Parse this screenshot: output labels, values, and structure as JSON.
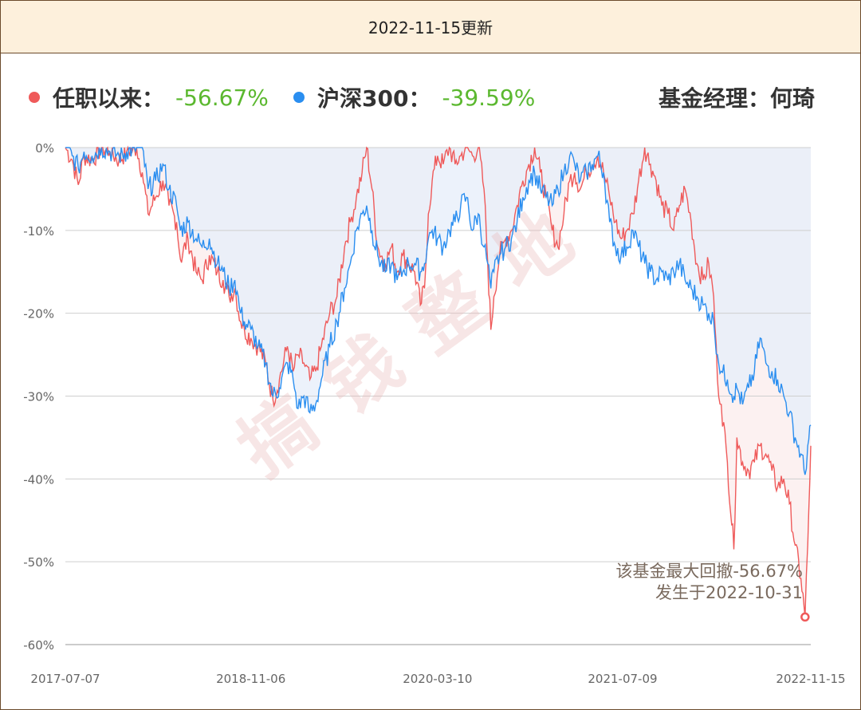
{
  "header": {
    "title": "2022-11-15更新"
  },
  "legend": {
    "fund_label": "任职以来：",
    "fund_value": "-56.67%",
    "fund_color": "#ef5a5a",
    "index_label": "沪深300：",
    "index_value": "-39.59%",
    "index_color": "#2a8ef0",
    "manager_text": "基金经理：何琦"
  },
  "watermark": "搞钱整地",
  "annotation": {
    "line1": "该基金最大回撤-56.67%",
    "line2": "发生于2022-10-31"
  },
  "chart_data": {
    "type": "line",
    "title": "",
    "xlabel": "",
    "ylabel": "",
    "x_ticks": [
      "2017-07-07",
      "2018-11-06",
      "2020-03-10",
      "2021-07-09",
      "2022-11-15"
    ],
    "ylim": [
      -60,
      0
    ],
    "y_ticks": [
      0,
      -10,
      -20,
      -30,
      -40,
      -50,
      -60
    ],
    "y_tick_labels": [
      "0%",
      "-10%",
      "-20%",
      "-30%",
      "-40%",
      "-50%",
      "-60%"
    ],
    "grid": true,
    "max_drawdown_point": {
      "date": "2022-10-31",
      "value": -56.67
    },
    "series": [
      {
        "name": "任职以来",
        "color": "#ef5a5a",
        "points": [
          [
            "2017-07-07",
            0
          ],
          [
            "2017-07-25",
            -1.5
          ],
          [
            "2017-08-10",
            -4.5
          ],
          [
            "2017-08-25",
            -1.0
          ],
          [
            "2017-09-15",
            -1.5
          ],
          [
            "2017-10-10",
            0
          ],
          [
            "2017-11-01",
            -0.5
          ],
          [
            "2017-11-25",
            -1.5
          ],
          [
            "2017-12-15",
            -0.5
          ],
          [
            "2018-01-10",
            0
          ],
          [
            "2018-01-25",
            -3
          ],
          [
            "2018-02-09",
            -8
          ],
          [
            "2018-03-01",
            -6
          ],
          [
            "2018-03-20",
            -4
          ],
          [
            "2018-04-05",
            -7
          ],
          [
            "2018-04-25",
            -9
          ],
          [
            "2018-05-05",
            -13.5
          ],
          [
            "2018-05-25",
            -11
          ],
          [
            "2018-06-15",
            -15
          ],
          [
            "2018-07-01",
            -16
          ],
          [
            "2018-07-20",
            -13
          ],
          [
            "2018-08-10",
            -15
          ],
          [
            "2018-08-25",
            -16
          ],
          [
            "2018-09-10",
            -18
          ],
          [
            "2018-09-25",
            -17
          ],
          [
            "2018-10-10",
            -21
          ],
          [
            "2018-10-20",
            -22
          ],
          [
            "2018-11-06",
            -23
          ],
          [
            "2018-11-25",
            -24
          ],
          [
            "2018-12-15",
            -26
          ],
          [
            "2019-01-03",
            -30.5
          ],
          [
            "2019-01-20",
            -28
          ],
          [
            "2019-02-10",
            -24
          ],
          [
            "2019-02-25",
            -27
          ],
          [
            "2019-03-10",
            -25
          ],
          [
            "2019-03-25",
            -26
          ],
          [
            "2019-04-10",
            -28
          ],
          [
            "2019-04-25",
            -27
          ],
          [
            "2019-05-10",
            -24
          ],
          [
            "2019-06-01",
            -20
          ],
          [
            "2019-06-20",
            -18
          ],
          [
            "2019-07-10",
            -12
          ],
          [
            "2019-07-25",
            -9
          ],
          [
            "2019-08-10",
            -6
          ],
          [
            "2019-08-25",
            -3
          ],
          [
            "2019-09-06",
            0
          ],
          [
            "2019-09-20",
            -5
          ],
          [
            "2019-10-05",
            -12
          ],
          [
            "2019-10-25",
            -14
          ],
          [
            "2019-11-10",
            -12
          ],
          [
            "2019-11-25",
            -15
          ],
          [
            "2019-12-10",
            -13
          ],
          [
            "2019-12-25",
            -14
          ],
          [
            "2020-01-10",
            -15
          ],
          [
            "2020-01-25",
            -19
          ],
          [
            "2020-02-05",
            -17
          ],
          [
            "2020-02-15",
            -8
          ],
          [
            "2020-02-25",
            -4
          ],
          [
            "2020-03-10",
            -1
          ],
          [
            "2020-03-25",
            -2
          ],
          [
            "2020-04-10",
            0
          ],
          [
            "2020-04-25",
            -2
          ],
          [
            "2020-05-10",
            -1
          ],
          [
            "2020-05-25",
            0
          ],
          [
            "2020-06-10",
            -1
          ],
          [
            "2020-06-25",
            0
          ],
          [
            "2020-07-10",
            -5
          ],
          [
            "2020-07-20",
            -14
          ],
          [
            "2020-07-28",
            -22
          ],
          [
            "2020-08-05",
            -18
          ],
          [
            "2020-08-20",
            -13
          ],
          [
            "2020-09-05",
            -11
          ],
          [
            "2020-09-20",
            -10
          ],
          [
            "2020-10-05",
            -7
          ],
          [
            "2020-10-20",
            -4
          ],
          [
            "2020-11-05",
            -2
          ],
          [
            "2020-11-20",
            0
          ],
          [
            "2020-12-05",
            -3
          ],
          [
            "2020-12-20",
            -6
          ],
          [
            "2021-01-05",
            -10
          ],
          [
            "2021-01-20",
            -12
          ],
          [
            "2021-02-05",
            -8
          ],
          [
            "2021-02-20",
            -4
          ],
          [
            "2021-03-05",
            -3
          ],
          [
            "2021-03-20",
            -5
          ],
          [
            "2021-04-05",
            -3
          ],
          [
            "2021-04-20",
            -2
          ],
          [
            "2021-05-05",
            -1
          ],
          [
            "2021-05-20",
            -3
          ],
          [
            "2021-06-05",
            -6
          ],
          [
            "2021-06-20",
            -9
          ],
          [
            "2021-07-05",
            -11
          ],
          [
            "2021-07-20",
            -10
          ],
          [
            "2021-08-05",
            -8
          ],
          [
            "2021-08-20",
            -4
          ],
          [
            "2021-09-05",
            0
          ],
          [
            "2021-09-20",
            -2
          ],
          [
            "2021-10-05",
            -4
          ],
          [
            "2021-10-20",
            -7
          ],
          [
            "2021-11-05",
            -8
          ],
          [
            "2021-11-20",
            -10
          ],
          [
            "2021-12-05",
            -7
          ],
          [
            "2021-12-20",
            -5
          ],
          [
            "2022-01-05",
            -9
          ],
          [
            "2022-01-20",
            -14
          ],
          [
            "2022-02-05",
            -16
          ],
          [
            "2022-02-20",
            -14
          ],
          [
            "2022-03-05",
            -18
          ],
          [
            "2022-03-15",
            -28
          ],
          [
            "2022-03-25",
            -31
          ],
          [
            "2022-04-10",
            -38
          ],
          [
            "2022-04-27",
            -48.5
          ],
          [
            "2022-05-05",
            -35
          ],
          [
            "2022-05-20",
            -38
          ],
          [
            "2022-06-05",
            -39
          ],
          [
            "2022-06-20",
            -38
          ],
          [
            "2022-07-05",
            -36
          ],
          [
            "2022-07-20",
            -37
          ],
          [
            "2022-08-05",
            -39
          ],
          [
            "2022-08-20",
            -41
          ],
          [
            "2022-09-05",
            -40
          ],
          [
            "2022-09-20",
            -43
          ],
          [
            "2022-10-05",
            -48
          ],
          [
            "2022-10-20",
            -52
          ],
          [
            "2022-10-31",
            -56.67
          ],
          [
            "2022-11-07",
            -48
          ],
          [
            "2022-11-15",
            -36
          ]
        ]
      },
      {
        "name": "沪深300",
        "color": "#2a8ef0",
        "points": [
          [
            "2017-07-07",
            0
          ],
          [
            "2017-07-25",
            -1
          ],
          [
            "2017-08-10",
            -2.5
          ],
          [
            "2017-08-25",
            -0.5
          ],
          [
            "2017-09-15",
            -1.0
          ],
          [
            "2017-10-10",
            0
          ],
          [
            "2017-11-01",
            -0.5
          ],
          [
            "2017-11-25",
            -1.0
          ],
          [
            "2017-12-15",
            -0.5
          ],
          [
            "2018-01-10",
            0
          ],
          [
            "2018-01-25",
            0
          ],
          [
            "2018-02-09",
            -5
          ],
          [
            "2018-03-01",
            -4
          ],
          [
            "2018-03-20",
            -2
          ],
          [
            "2018-04-05",
            -5
          ],
          [
            "2018-04-25",
            -7
          ],
          [
            "2018-05-05",
            -10
          ],
          [
            "2018-05-25",
            -9
          ],
          [
            "2018-06-15",
            -11
          ],
          [
            "2018-07-01",
            -12
          ],
          [
            "2018-07-20",
            -11
          ],
          [
            "2018-08-10",
            -14
          ],
          [
            "2018-08-25",
            -15
          ],
          [
            "2018-09-10",
            -17
          ],
          [
            "2018-09-25",
            -16
          ],
          [
            "2018-10-10",
            -20
          ],
          [
            "2018-10-20",
            -21
          ],
          [
            "2018-11-06",
            -22
          ],
          [
            "2018-11-25",
            -24
          ],
          [
            "2018-12-15",
            -26
          ],
          [
            "2019-01-03",
            -30
          ],
          [
            "2019-01-20",
            -29
          ],
          [
            "2019-02-10",
            -26
          ],
          [
            "2019-02-25",
            -28
          ],
          [
            "2019-03-10",
            -31.5
          ],
          [
            "2019-03-25",
            -30
          ],
          [
            "2019-04-10",
            -32
          ],
          [
            "2019-04-25",
            -31
          ],
          [
            "2019-05-10",
            -28
          ],
          [
            "2019-06-01",
            -24
          ],
          [
            "2019-06-20",
            -21
          ],
          [
            "2019-07-10",
            -17
          ],
          [
            "2019-07-25",
            -14
          ],
          [
            "2019-08-10",
            -10
          ],
          [
            "2019-08-25",
            -8
          ],
          [
            "2019-09-06",
            -7
          ],
          [
            "2019-09-20",
            -10
          ],
          [
            "2019-10-05",
            -13
          ],
          [
            "2019-10-25",
            -15
          ],
          [
            "2019-11-10",
            -14
          ],
          [
            "2019-11-25",
            -16
          ],
          [
            "2019-12-10",
            -15
          ],
          [
            "2019-12-25",
            -14
          ],
          [
            "2020-01-10",
            -14
          ],
          [
            "2020-01-25",
            -15
          ],
          [
            "2020-02-05",
            -14
          ],
          [
            "2020-02-15",
            -11
          ],
          [
            "2020-02-25",
            -10
          ],
          [
            "2020-03-10",
            -11
          ],
          [
            "2020-03-25",
            -12
          ],
          [
            "2020-04-10",
            -10
          ],
          [
            "2020-04-25",
            -9
          ],
          [
            "2020-05-10",
            -7
          ],
          [
            "2020-05-25",
            -6
          ],
          [
            "2020-06-10",
            -10
          ],
          [
            "2020-06-25",
            -8
          ],
          [
            "2020-07-10",
            -12
          ],
          [
            "2020-07-20",
            -14
          ],
          [
            "2020-07-28",
            -17
          ],
          [
            "2020-08-05",
            -15
          ],
          [
            "2020-08-20",
            -13
          ],
          [
            "2020-09-05",
            -12
          ],
          [
            "2020-09-20",
            -11
          ],
          [
            "2020-10-05",
            -9
          ],
          [
            "2020-10-20",
            -6
          ],
          [
            "2020-11-05",
            -4
          ],
          [
            "2020-11-20",
            -3
          ],
          [
            "2020-12-05",
            -5
          ],
          [
            "2020-12-20",
            -6
          ],
          [
            "2021-01-05",
            -7
          ],
          [
            "2021-01-20",
            -5
          ],
          [
            "2021-02-05",
            -3
          ],
          [
            "2021-02-20",
            -1
          ],
          [
            "2021-03-05",
            -2
          ],
          [
            "2021-03-20",
            -4
          ],
          [
            "2021-04-05",
            -3
          ],
          [
            "2021-04-20",
            -2
          ],
          [
            "2021-05-05",
            -1
          ],
          [
            "2021-05-20",
            -3
          ],
          [
            "2021-06-05",
            -9
          ],
          [
            "2021-06-20",
            -12
          ],
          [
            "2021-07-05",
            -13
          ],
          [
            "2021-07-20",
            -12
          ],
          [
            "2021-08-05",
            -10
          ],
          [
            "2021-08-20",
            -12
          ],
          [
            "2021-09-05",
            -14
          ],
          [
            "2021-09-20",
            -15
          ],
          [
            "2021-10-05",
            -16
          ],
          [
            "2021-10-20",
            -15
          ],
          [
            "2021-11-05",
            -16
          ],
          [
            "2021-11-20",
            -15
          ],
          [
            "2021-12-05",
            -14
          ],
          [
            "2021-12-20",
            -16
          ],
          [
            "2022-01-05",
            -17
          ],
          [
            "2022-01-20",
            -18
          ],
          [
            "2022-02-05",
            -19
          ],
          [
            "2022-02-20",
            -20
          ],
          [
            "2022-03-05",
            -21
          ],
          [
            "2022-03-15",
            -25
          ],
          [
            "2022-03-25",
            -27
          ],
          [
            "2022-04-10",
            -28
          ],
          [
            "2022-04-27",
            -30
          ],
          [
            "2022-05-05",
            -29
          ],
          [
            "2022-05-20",
            -31
          ],
          [
            "2022-06-05",
            -29
          ],
          [
            "2022-06-20",
            -27
          ],
          [
            "2022-07-05",
            -23
          ],
          [
            "2022-07-20",
            -26
          ],
          [
            "2022-08-05",
            -27
          ],
          [
            "2022-08-20",
            -28
          ],
          [
            "2022-09-05",
            -30
          ],
          [
            "2022-09-20",
            -32
          ],
          [
            "2022-10-05",
            -35
          ],
          [
            "2022-10-20",
            -37
          ],
          [
            "2022-10-31",
            -39.5
          ],
          [
            "2022-11-07",
            -36
          ],
          [
            "2022-11-15",
            -33.5
          ]
        ]
      }
    ]
  }
}
